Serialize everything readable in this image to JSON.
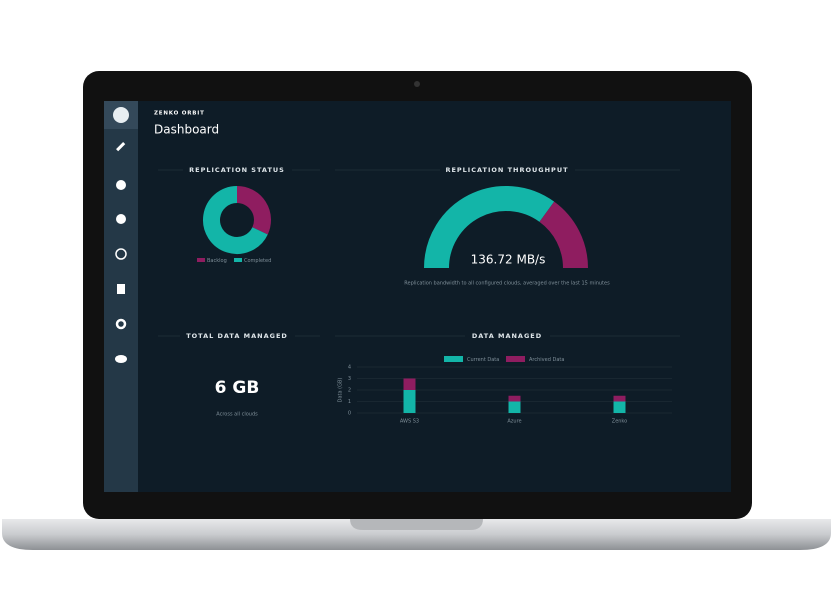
{
  "header": {
    "brand": "ZENKO ORBIT",
    "title": "Dashboard"
  },
  "total_data": {
    "title": "TOTAL DATA MANAGED",
    "value": "6 GB",
    "caption": "Across all clouds"
  },
  "chart_data": [
    {
      "type": "donut",
      "title": "REPLICATION STATUS",
      "categories": [
        "Backlog",
        "Completed"
      ],
      "values": [
        32,
        68
      ],
      "colors": [
        "#8f1d60",
        "#13b5a8"
      ]
    },
    {
      "type": "gauge",
      "title": "REPLICATION THROUGHPUT",
      "center_label": "136.72 MB/s",
      "caption": "Replication bandwidth to all configured clouds, averaged over the last 15 minutes",
      "values": [
        70,
        30
      ],
      "colors": [
        "#13b5a8",
        "#8f1d60"
      ]
    },
    {
      "type": "bar",
      "stacked": true,
      "title": "DATA MANAGED",
      "y_label": "Data (GB)",
      "categories": [
        "AWS S3",
        "Azure",
        "Zenko"
      ],
      "series": [
        {
          "name": "Current Data",
          "color": "#13b5a8",
          "values": [
            2,
            1,
            1
          ]
        },
        {
          "name": "Archived Data",
          "color": "#8f1d60",
          "values": [
            1,
            0.5,
            0.5
          ]
        }
      ],
      "ylim": [
        0,
        4
      ],
      "yticks": [
        0,
        1,
        2,
        3,
        4
      ],
      "grid": true
    }
  ]
}
